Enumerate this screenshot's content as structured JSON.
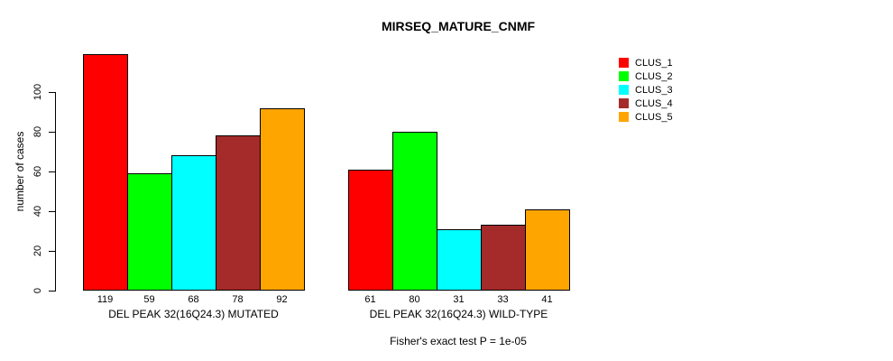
{
  "chart_data": {
    "type": "bar",
    "title": "MIRSEQ_MATURE_CNMF",
    "ylabel": "number of cases",
    "ylim": [
      0,
      100
    ],
    "yticks": [
      0,
      20,
      40,
      60,
      80,
      100
    ],
    "grid": false,
    "legend_position": "right",
    "categories": [
      "DEL PEAK 32(16Q24.3) MUTATED",
      "DEL PEAK 32(16Q24.3) WILD-TYPE"
    ],
    "series": [
      {
        "name": "CLUS_1",
        "color": "#FF0000",
        "values": [
          119,
          61
        ]
      },
      {
        "name": "CLUS_2",
        "color": "#00FF00",
        "values": [
          59,
          80
        ]
      },
      {
        "name": "CLUS_3",
        "color": "#00FFFF",
        "values": [
          68,
          31
        ]
      },
      {
        "name": "CLUS_4",
        "color": "#A52A2A",
        "values": [
          78,
          33
        ]
      },
      {
        "name": "CLUS_5",
        "color": "#FFA500",
        "values": [
          92,
          41
        ]
      }
    ],
    "bar_value_labels_shown": true,
    "annotation": "Fisher's exact test P = 1e-05",
    "colors": {
      "background": "#FFFFFF",
      "axis": "#000000",
      "text": "#000000"
    }
  }
}
